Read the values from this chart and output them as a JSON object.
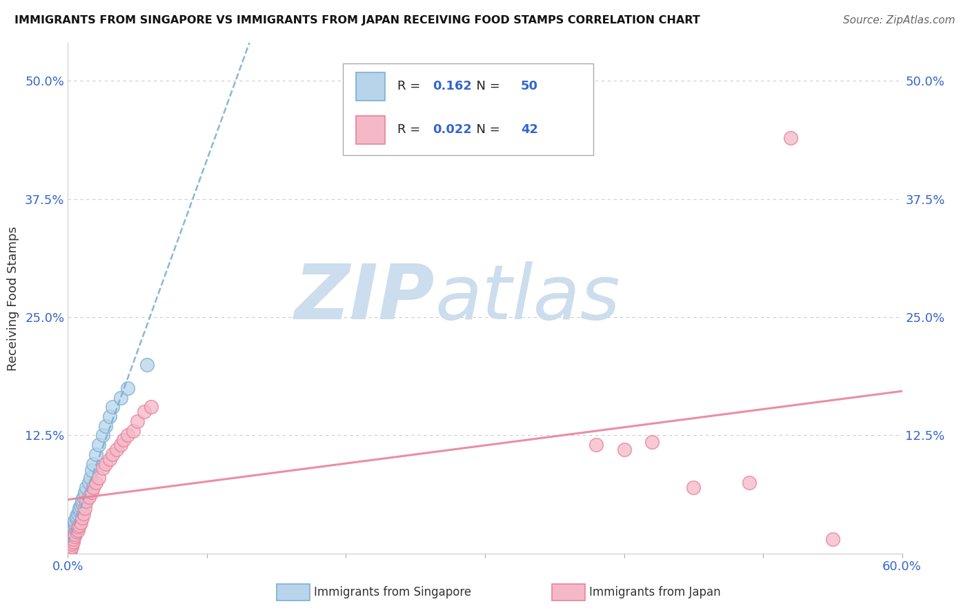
{
  "title": "IMMIGRANTS FROM SINGAPORE VS IMMIGRANTS FROM JAPAN RECEIVING FOOD STAMPS CORRELATION CHART",
  "source": "Source: ZipAtlas.com",
  "ylabel": "Receiving Food Stamps",
  "xlim": [
    0.0,
    0.6
  ],
  "ylim": [
    0.0,
    0.54
  ],
  "ytick_vals": [
    0.0,
    0.125,
    0.25,
    0.375,
    0.5
  ],
  "ytick_labels_left": [
    "",
    "12.5%",
    "25.0%",
    "37.5%",
    "50.0%"
  ],
  "ytick_labels_right": [
    "",
    "12.5%",
    "25.0%",
    "37.5%",
    "50.0%"
  ],
  "xtick_vals": [
    0.0,
    0.1,
    0.2,
    0.3,
    0.4,
    0.5,
    0.6
  ],
  "xtick_label_left": "0.0%",
  "xtick_label_right": "60.0%",
  "grid_color": "#cccccc",
  "watermark_color": "#ccdded",
  "singapore_dot_color": "#7bafd4",
  "singapore_dot_fill": "#b8d4ea",
  "japan_dot_color": "#e8829a",
  "japan_dot_fill": "#f4b8c8",
  "sg_trend_color": "#7bafd4",
  "jp_trend_color": "#e8829a",
  "R_singapore": 0.162,
  "N_singapore": 50,
  "R_japan": 0.022,
  "N_japan": 42,
  "legend_label_sg": "Immigrants from Singapore",
  "legend_label_jp": "Immigrants from Japan",
  "sg_x": [
    0.001,
    0.001,
    0.001,
    0.001,
    0.001,
    0.001,
    0.001,
    0.001,
    0.001,
    0.001,
    0.002,
    0.002,
    0.002,
    0.002,
    0.002,
    0.002,
    0.002,
    0.003,
    0.003,
    0.003,
    0.004,
    0.004,
    0.004,
    0.005,
    0.005,
    0.005,
    0.006,
    0.006,
    0.007,
    0.008,
    0.008,
    0.009,
    0.01,
    0.01,
    0.011,
    0.012,
    0.013,
    0.015,
    0.016,
    0.017,
    0.018,
    0.02,
    0.022,
    0.025,
    0.027,
    0.03,
    0.032,
    0.038,
    0.043,
    0.057
  ],
  "sg_y": [
    0.001,
    0.002,
    0.003,
    0.005,
    0.006,
    0.007,
    0.008,
    0.01,
    0.011,
    0.013,
    0.014,
    0.015,
    0.016,
    0.017,
    0.018,
    0.02,
    0.021,
    0.022,
    0.023,
    0.025,
    0.026,
    0.027,
    0.028,
    0.03,
    0.032,
    0.035,
    0.037,
    0.04,
    0.042,
    0.045,
    0.048,
    0.05,
    0.053,
    0.057,
    0.06,
    0.065,
    0.07,
    0.075,
    0.08,
    0.088,
    0.095,
    0.105,
    0.115,
    0.125,
    0.135,
    0.145,
    0.155,
    0.165,
    0.175,
    0.2
  ],
  "jp_x": [
    0.001,
    0.002,
    0.002,
    0.003,
    0.003,
    0.004,
    0.004,
    0.005,
    0.005,
    0.006,
    0.007,
    0.007,
    0.008,
    0.009,
    0.01,
    0.011,
    0.012,
    0.013,
    0.015,
    0.017,
    0.018,
    0.02,
    0.022,
    0.025,
    0.027,
    0.03,
    0.032,
    0.035,
    0.038,
    0.04,
    0.043,
    0.047,
    0.05,
    0.055,
    0.06,
    0.38,
    0.4,
    0.42,
    0.45,
    0.49,
    0.52,
    0.55
  ],
  "jp_y": [
    0.001,
    0.003,
    0.005,
    0.007,
    0.01,
    0.012,
    0.015,
    0.018,
    0.02,
    0.023,
    0.025,
    0.028,
    0.03,
    0.033,
    0.038,
    0.042,
    0.048,
    0.055,
    0.06,
    0.065,
    0.07,
    0.075,
    0.08,
    0.09,
    0.095,
    0.1,
    0.105,
    0.11,
    0.115,
    0.12,
    0.125,
    0.13,
    0.14,
    0.15,
    0.155,
    0.115,
    0.11,
    0.118,
    0.07,
    0.075,
    0.44,
    0.015
  ]
}
